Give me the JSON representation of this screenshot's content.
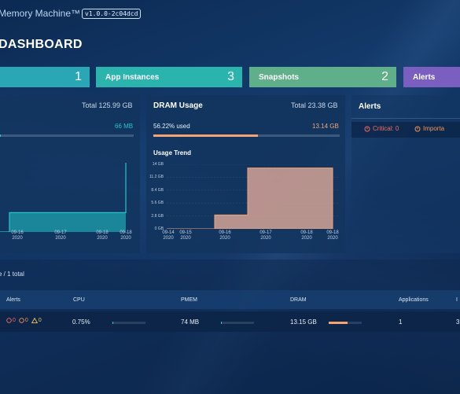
{
  "app": {
    "title": "Memory Machine™",
    "version": "v1.0.0-2c04dcd",
    "page_title": "DASHBOARD"
  },
  "stats": [
    {
      "label": "",
      "count": "1",
      "color": "#2aa6b5"
    },
    {
      "label": "App Instances",
      "count": "3",
      "color": "#2bb3ad"
    },
    {
      "label": "Snapshots",
      "count": "2",
      "color": "#5faf8a"
    },
    {
      "label": "Alerts",
      "count": "",
      "color": "#7a5fc1"
    }
  ],
  "pmem_panel": {
    "total": "Total 125.99 GB",
    "used_value": "66 MB",
    "used_fraction": 0.005,
    "accent": "#23c6c9"
  },
  "dram_panel": {
    "title": "DRAM Usage",
    "total": "Total 23.38 GB",
    "used_label": "56.22% used",
    "used_value": "13.14 GB",
    "used_fraction": 0.5622,
    "accent": "#f4a373",
    "trend_title": "Usage Trend"
  },
  "alerts_panel": {
    "title": "Alerts",
    "critical_label": "Critical: 0",
    "important_label": "Importa",
    "critical_color": "#f06d62",
    "important_color": "#f0955a"
  },
  "chart_data": [
    {
      "type": "area",
      "x": [
        "09-16 2020",
        "09-17 2020",
        "09-18 2020",
        "09-18 2020"
      ],
      "series": [
        {
          "values": [
            28,
            28,
            28,
            100
          ]
        }
      ],
      "x_ticks": [
        "09-16\n2020",
        "09-17\n2020",
        "09-18\n2020",
        "09-18\n2020"
      ],
      "color": "#23c6c9"
    },
    {
      "type": "area",
      "x": [
        "09-14 2020",
        "09-15 2020",
        "09-16 2020",
        "09-17 2020",
        "09-18 2020",
        "09-18 2020"
      ],
      "series": [
        {
          "values": [
            0.0,
            0.0,
            3.0,
            13.2,
            13.2,
            13.2
          ]
        }
      ],
      "x_ticks": [
        "09-14\n2020",
        "09-15\n2020",
        "09-16\n2020",
        "09-17\n2020",
        "09-18\n2020",
        "09-18\n2020"
      ],
      "y_ticks": [
        "14 GB",
        "11.2 GB",
        "8.4 GB",
        "5.6 GB",
        "2.8 GB",
        "0 GB"
      ],
      "ylim": [
        0,
        14
      ],
      "color": "#f4a373"
    }
  ],
  "list": {
    "summary": "e / 1 total",
    "columns": [
      "Alerts",
      "CPU",
      "PMEM",
      "DRAM",
      "Applications",
      "I"
    ],
    "rows": [
      {
        "alerts": [
          "0",
          "0",
          "0"
        ],
        "cpu": "0.75%",
        "pmem": "74 MB",
        "dram": "13.15 GB",
        "dram_fraction": 0.56,
        "applications": "1",
        "last": "3"
      }
    ]
  }
}
